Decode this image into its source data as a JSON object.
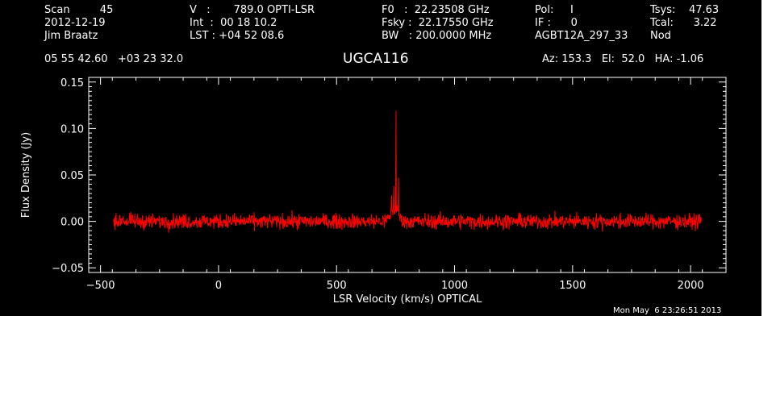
{
  "header": {
    "col1": [
      "Scan         45",
      "2012-12-19",
      "Jim Braatz"
    ],
    "col2": [
      "V   :       789.0 OPTI-LSR",
      "Int  :  00 18 10.2",
      "LST : +04 52 08.6"
    ],
    "col3": [
      "F0   :  22.23508 GHz",
      "Fsky :  22.17550 GHz",
      "BW   : 200.0000 MHz"
    ],
    "col4": [
      "Pol:     I",
      "IF :      0",
      "AGBT12A_297_33"
    ],
    "col5": [
      "Tsys:    47.63",
      "Tcal:      3.22",
      "Nod"
    ],
    "coords": "05 55 42.60   +03 23 32.0",
    "source": "UGCA116",
    "azelha": "Az: 153.3   El:  52.0   HA: -1.06",
    "timestamp": "Mon May  6 23:26:51 2013"
  },
  "chart_data": {
    "type": "line",
    "title": "UGCA116",
    "xlabel": "LSR Velocity (km/s) OPTICAL",
    "ylabel": "Flux Density (Jy)",
    "xlim": [
      -550,
      2150
    ],
    "ylim": [
      -0.055,
      0.155
    ],
    "xticks": [
      -500,
      0,
      500,
      1000,
      1500,
      2000
    ],
    "xtick_labels": [
      "−500",
      "0",
      "500",
      "1000",
      "1500",
      "2000"
    ],
    "yticks": [
      -0.05,
      0.0,
      0.05,
      0.1,
      0.15
    ],
    "ytick_labels": [
      "−0.05",
      "0.00",
      "0.05",
      "0.10",
      "0.15"
    ],
    "grid": false,
    "series": [
      {
        "color": "#ff0000",
        "x_range": [
          -445,
          2045
        ],
        "noise_rms": 0.004,
        "baseline": 0.0,
        "features": [
          {
            "x": 742,
            "y": 0.038
          },
          {
            "x": 752,
            "y": 0.119
          },
          {
            "x": 762,
            "y": 0.047
          },
          {
            "x": 733,
            "y": 0.028
          }
        ]
      }
    ]
  }
}
